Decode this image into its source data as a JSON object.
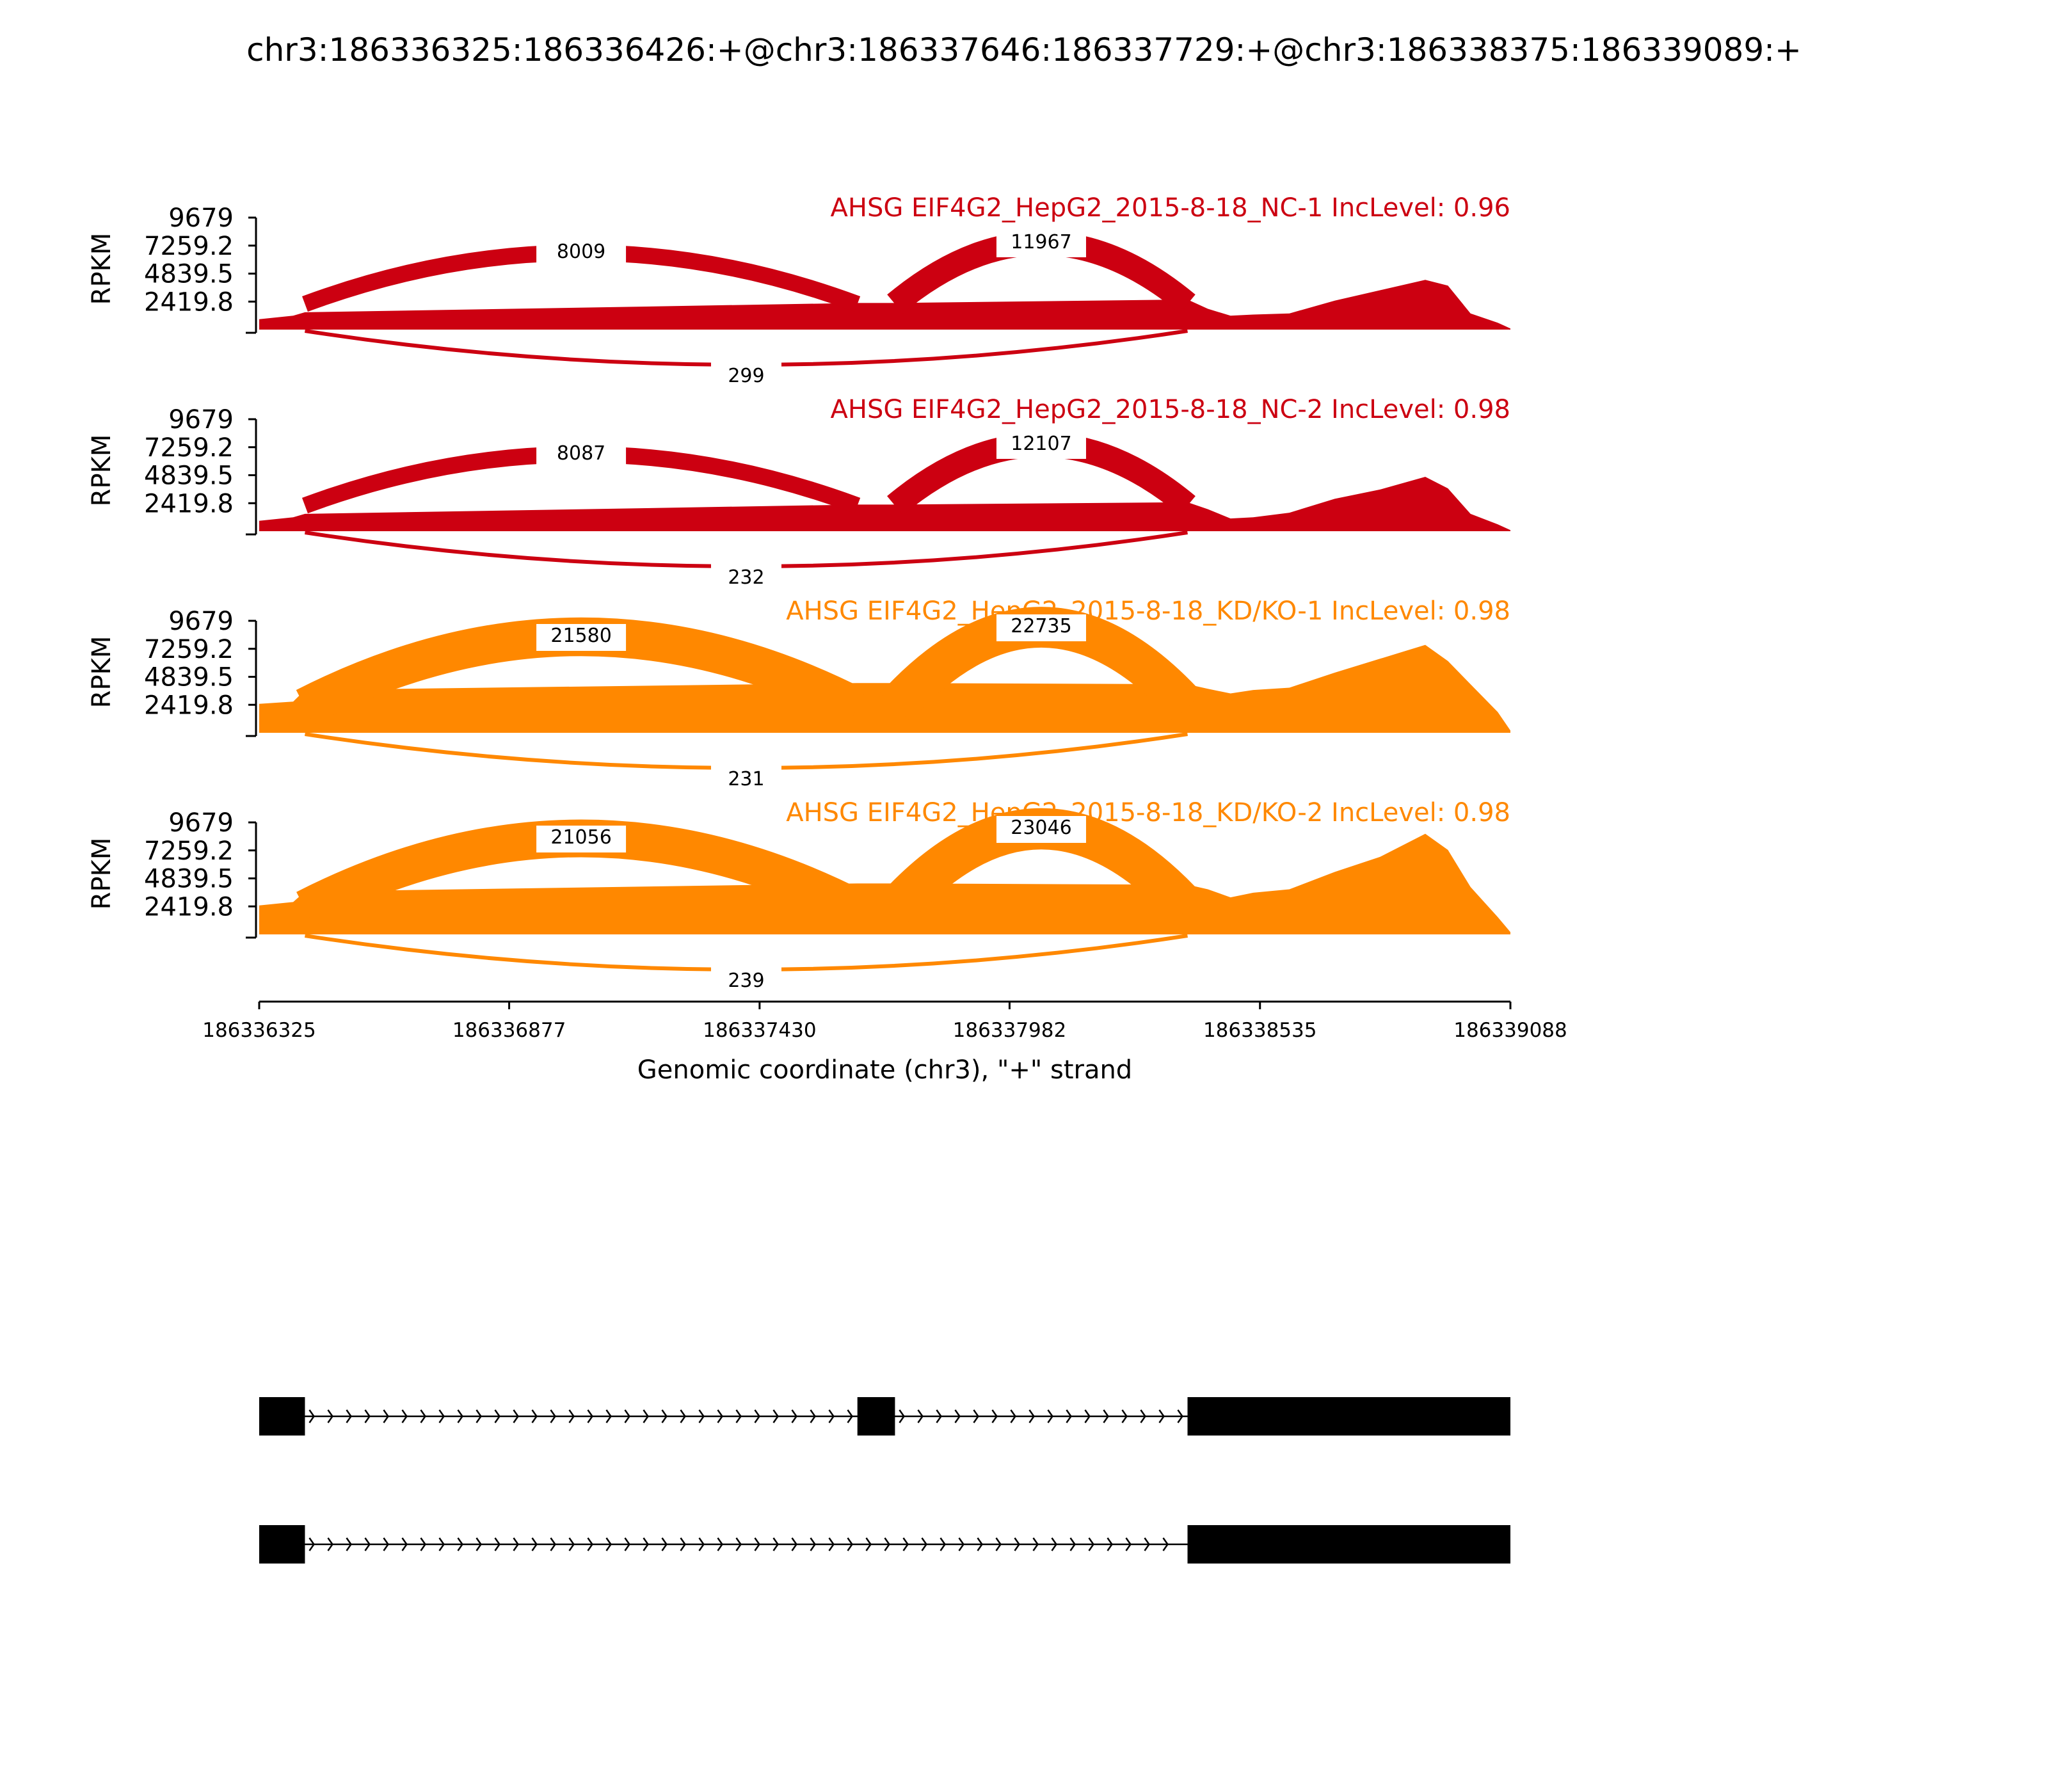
{
  "figure": {
    "title": "chr3:186336325:186336426:+@chr3:186337646:186337729:+@chr3:186338375:186339089:+"
  },
  "colors": {
    "nc": "#cc0011",
    "kd": "#ff8800",
    "gene_model": "#000000"
  },
  "chart_data": {
    "type": "area",
    "subtype": "sashimi",
    "title": "chr3:186336325:186336426:+@chr3:186337646:186337729:+@chr3:186338375:186339089:+",
    "xlabel": "Genomic coordinate (chr3), \"+\" strand",
    "ylabel": "RPKM",
    "xlim": [
      186336325,
      186339088
    ],
    "x_ticks": [
      "186336325",
      "186336877",
      "186337430",
      "186337982",
      "186338535",
      "186339088"
    ],
    "ylim": [
      0,
      9679
    ],
    "y_ticks": [
      "9679",
      "7259.2",
      "4839.5",
      "2419.8"
    ],
    "exons": [
      {
        "start": 186336325,
        "end": 186336426
      },
      {
        "start": 186337646,
        "end": 186337729
      },
      {
        "start": 186338375,
        "end": 186339089
      }
    ],
    "series": [
      {
        "name": "AHSG EIF4G2_HepG2_2015-8-18_NC-1 IncLevel: 0.96",
        "color": "#cc0011",
        "junctions": [
          {
            "start": 186336426,
            "end": 186337646,
            "count": "8009"
          },
          {
            "start": 186337729,
            "end": 186338375,
            "count": "11967"
          },
          {
            "start": 186336426,
            "end": 186338375,
            "count": "299"
          }
        ],
        "coverage": [
          [
            186336325,
            900
          ],
          [
            186336400,
            1200
          ],
          [
            186336426,
            1500
          ],
          [
            186337646,
            2300
          ],
          [
            186337729,
            2300
          ],
          [
            186338375,
            2600
          ],
          [
            186338420,
            1800
          ],
          [
            186338470,
            1200
          ],
          [
            186338520,
            1300
          ],
          [
            186338600,
            1400
          ],
          [
            186338700,
            2500
          ],
          [
            186338800,
            3400
          ],
          [
            186338900,
            4300
          ],
          [
            186338950,
            3800
          ],
          [
            186339000,
            1400
          ],
          [
            186339060,
            600
          ],
          [
            186339088,
            100
          ]
        ]
      },
      {
        "name": "AHSG EIF4G2_HepG2_2015-8-18_NC-2 IncLevel: 0.98",
        "color": "#cc0011",
        "junctions": [
          {
            "start": 186336426,
            "end": 186337646,
            "count": "8087"
          },
          {
            "start": 186337729,
            "end": 186338375,
            "count": "12107"
          },
          {
            "start": 186336426,
            "end": 186338375,
            "count": "232"
          }
        ],
        "coverage": [
          [
            186336325,
            900
          ],
          [
            186336400,
            1200
          ],
          [
            186336426,
            1500
          ],
          [
            186337646,
            2300
          ],
          [
            186337729,
            2300
          ],
          [
            186338375,
            2500
          ],
          [
            186338420,
            1900
          ],
          [
            186338470,
            1100
          ],
          [
            186338520,
            1200
          ],
          [
            186338600,
            1600
          ],
          [
            186338700,
            2800
          ],
          [
            186338800,
            3600
          ],
          [
            186338900,
            4700
          ],
          [
            186338950,
            3700
          ],
          [
            186339000,
            1500
          ],
          [
            186339060,
            600
          ],
          [
            186339088,
            100
          ]
        ]
      },
      {
        "name": "AHSG EIF4G2_HepG2_2015-8-18_KD/KO-1 IncLevel: 0.98",
        "color": "#ff8800",
        "junctions": [
          {
            "start": 186336426,
            "end": 186337646,
            "count": "21580"
          },
          {
            "start": 186337729,
            "end": 186338375,
            "count": "22735"
          },
          {
            "start": 186336426,
            "end": 186338375,
            "count": "231"
          }
        ],
        "coverage": [
          [
            186336325,
            2500
          ],
          [
            186336400,
            2700
          ],
          [
            186336426,
            3700
          ],
          [
            186337646,
            4300
          ],
          [
            186337729,
            4300
          ],
          [
            186338375,
            4200
          ],
          [
            186338420,
            3800
          ],
          [
            186338470,
            3400
          ],
          [
            186338520,
            3700
          ],
          [
            186338600,
            3900
          ],
          [
            186338700,
            5200
          ],
          [
            186338800,
            6400
          ],
          [
            186338900,
            7600
          ],
          [
            186338950,
            6200
          ],
          [
            186339000,
            4200
          ],
          [
            186339060,
            1800
          ],
          [
            186339088,
            200
          ]
        ]
      },
      {
        "name": "AHSG EIF4G2_HepG2_2015-8-18_KD/KO-2 IncLevel: 0.98",
        "color": "#ff8800",
        "junctions": [
          {
            "start": 186336426,
            "end": 186337646,
            "count": "21056"
          },
          {
            "start": 186337729,
            "end": 186338375,
            "count": "23046"
          },
          {
            "start": 186336426,
            "end": 186338375,
            "count": "239"
          }
        ],
        "coverage": [
          [
            186336325,
            2500
          ],
          [
            186336400,
            2800
          ],
          [
            186336426,
            3700
          ],
          [
            186337646,
            4400
          ],
          [
            186337729,
            4400
          ],
          [
            186338375,
            4300
          ],
          [
            186338420,
            3900
          ],
          [
            186338470,
            3200
          ],
          [
            186338520,
            3600
          ],
          [
            186338600,
            3900
          ],
          [
            186338700,
            5400
          ],
          [
            186338800,
            6700
          ],
          [
            186338900,
            8700
          ],
          [
            186338950,
            7300
          ],
          [
            186339000,
            4100
          ],
          [
            186339060,
            1500
          ],
          [
            186339088,
            200
          ]
        ]
      }
    ],
    "transcripts": [
      {
        "exons": [
          [
            186336325,
            186336426
          ],
          [
            186337646,
            186337729
          ],
          [
            186338375,
            186339089
          ]
        ]
      },
      {
        "exons": [
          [
            186336325,
            186336426
          ],
          [
            186338375,
            186339089
          ]
        ]
      }
    ]
  }
}
